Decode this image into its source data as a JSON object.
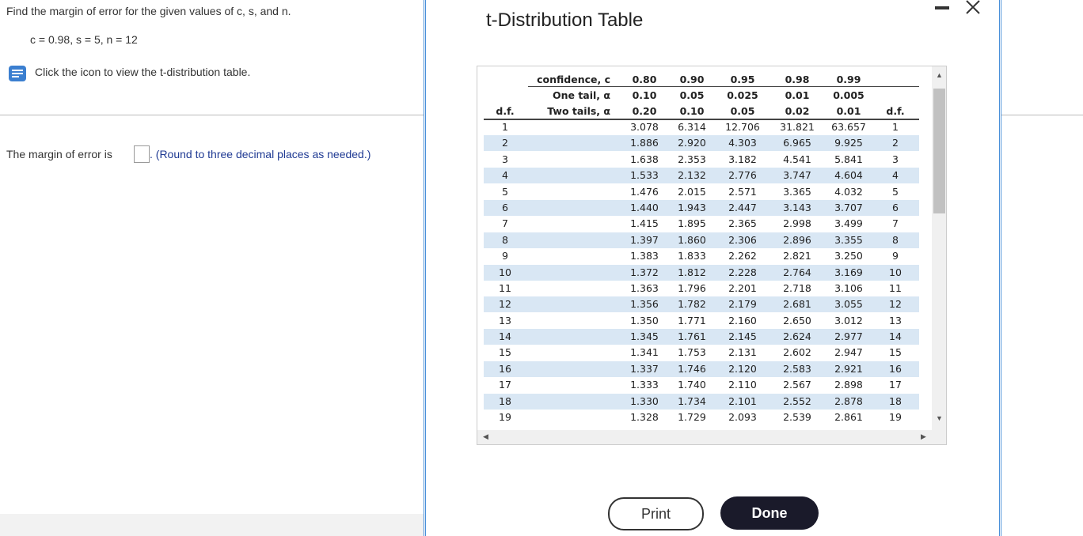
{
  "question": {
    "prompt": "Find the margin of error for the given values of c, s, and n.",
    "given": "c = 0.98, s = 5, n = 12",
    "table_link": "Click the icon to view the t-distribution table.",
    "answer_prefix": "The margin of error is",
    "answer_suffix": ". (Round to three decimal places as needed.)"
  },
  "modal": {
    "title": "t-Distribution Table",
    "buttons": [
      "Print",
      "Done"
    ],
    "table": {
      "header_rows": [
        {
          "df": null,
          "label": "confidence, c",
          "values": [
            "0.80",
            "0.90",
            "0.95",
            "0.98",
            "0.99"
          ],
          "df_right": null
        },
        {
          "df": null,
          "label": "One tail, α",
          "values": [
            "0.10",
            "0.05",
            "0.025",
            "0.01",
            "0.005"
          ],
          "df_right": null
        },
        {
          "df": "d.f.",
          "label": "Two tails, α",
          "values": [
            "0.20",
            "0.10",
            "0.05",
            "0.02",
            "0.01"
          ],
          "df_right": "d.f."
        }
      ],
      "rows": [
        {
          "df": "1",
          "values": [
            "3.078",
            "6.314",
            "12.706",
            "31.821",
            "63.657"
          ]
        },
        {
          "df": "2",
          "values": [
            "1.886",
            "2.920",
            "4.303",
            "6.965",
            "9.925"
          ]
        },
        {
          "df": "3",
          "values": [
            "1.638",
            "2.353",
            "3.182",
            "4.541",
            "5.841"
          ]
        },
        {
          "df": "4",
          "values": [
            "1.533",
            "2.132",
            "2.776",
            "3.747",
            "4.604"
          ]
        },
        {
          "df": "5",
          "values": [
            "1.476",
            "2.015",
            "2.571",
            "3.365",
            "4.032"
          ]
        },
        {
          "df": "6",
          "values": [
            "1.440",
            "1.943",
            "2.447",
            "3.143",
            "3.707"
          ]
        },
        {
          "df": "7",
          "values": [
            "1.415",
            "1.895",
            "2.365",
            "2.998",
            "3.499"
          ]
        },
        {
          "df": "8",
          "values": [
            "1.397",
            "1.860",
            "2.306",
            "2.896",
            "3.355"
          ]
        },
        {
          "df": "9",
          "values": [
            "1.383",
            "1.833",
            "2.262",
            "2.821",
            "3.250"
          ]
        },
        {
          "df": "10",
          "values": [
            "1.372",
            "1.812",
            "2.228",
            "2.764",
            "3.169"
          ]
        },
        {
          "df": "11",
          "values": [
            "1.363",
            "1.796",
            "2.201",
            "2.718",
            "3.106"
          ]
        },
        {
          "df": "12",
          "values": [
            "1.356",
            "1.782",
            "2.179",
            "2.681",
            "3.055"
          ]
        },
        {
          "df": "13",
          "values": [
            "1.350",
            "1.771",
            "2.160",
            "2.650",
            "3.012"
          ]
        },
        {
          "df": "14",
          "values": [
            "1.345",
            "1.761",
            "2.145",
            "2.624",
            "2.977"
          ]
        },
        {
          "df": "15",
          "values": [
            "1.341",
            "1.753",
            "2.131",
            "2.602",
            "2.947"
          ]
        },
        {
          "df": "16",
          "values": [
            "1.337",
            "1.746",
            "2.120",
            "2.583",
            "2.921"
          ]
        },
        {
          "df": "17",
          "values": [
            "1.333",
            "1.740",
            "2.110",
            "2.567",
            "2.898"
          ]
        },
        {
          "df": "18",
          "values": [
            "1.330",
            "1.734",
            "2.101",
            "2.552",
            "2.878"
          ]
        },
        {
          "df": "19",
          "values": [
            "1.328",
            "1.729",
            "2.093",
            "2.539",
            "2.861"
          ]
        }
      ]
    }
  }
}
